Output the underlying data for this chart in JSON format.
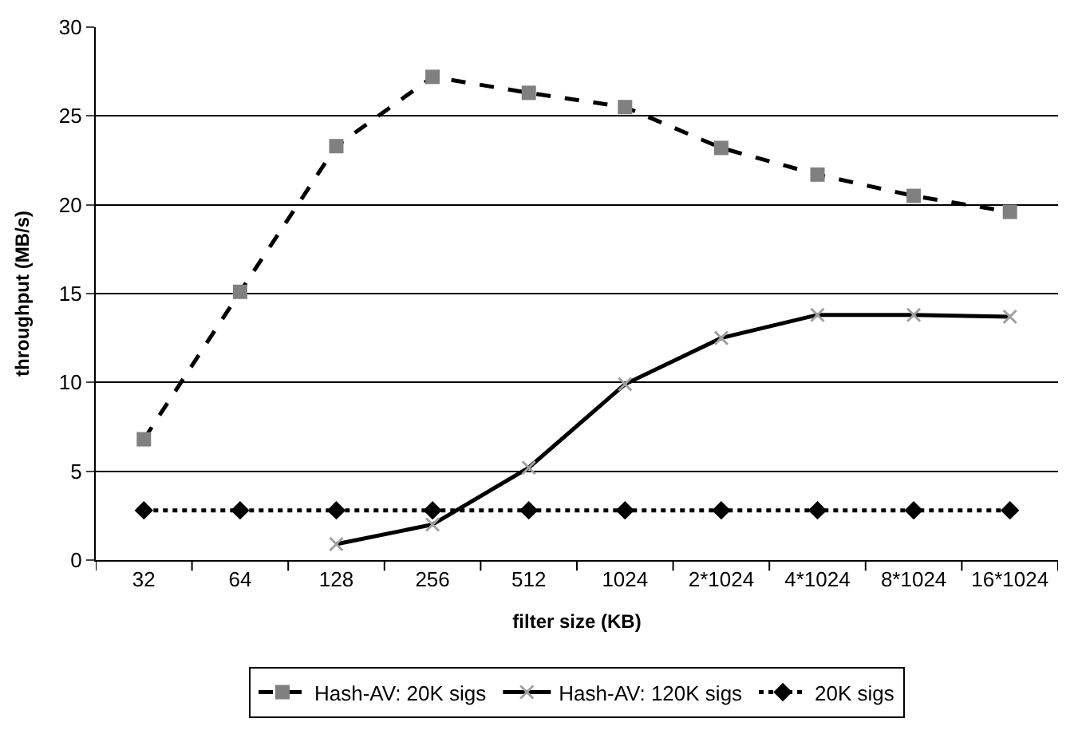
{
  "chart_data": {
    "type": "line",
    "xlabel": "filter size (KB)",
    "ylabel": "throughput (MB/s)",
    "categories": [
      "32",
      "64",
      "128",
      "256",
      "512",
      "1024",
      "2*1024",
      "4*1024",
      "8*1024",
      "16*1024"
    ],
    "ylim": [
      0,
      30
    ],
    "yticks": [
      0,
      5,
      10,
      15,
      20,
      25,
      30
    ],
    "grid": "y",
    "legend": "bottom",
    "series": [
      {
        "name": "Hash-AV: 20K sigs",
        "color": "#808080",
        "marker": "square",
        "line_style": "dashed",
        "values": [
          6.8,
          15.1,
          23.3,
          27.2,
          26.3,
          25.5,
          23.2,
          21.7,
          20.5,
          19.6
        ]
      },
      {
        "name": "Hash-AV: 120K sigs",
        "color": "#a0a0a0",
        "marker": "cross",
        "line_style": "solid",
        "values": [
          null,
          null,
          0.9,
          2.0,
          5.2,
          9.9,
          12.5,
          13.8,
          13.8,
          13.7
        ]
      },
      {
        "name": "20K sigs",
        "color": "#000000",
        "marker": "diamond",
        "line_style": "dotted",
        "values": [
          2.8,
          2.8,
          2.8,
          2.8,
          2.8,
          2.8,
          2.8,
          2.8,
          2.8,
          2.8
        ]
      }
    ]
  }
}
